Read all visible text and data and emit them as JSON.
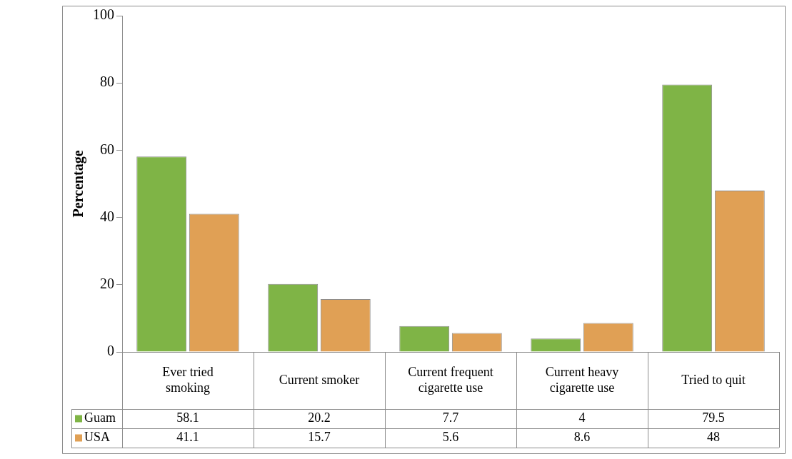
{
  "chart_data": {
    "type": "bar",
    "ylabel": "Percentage",
    "categories": [
      "Ever tried smoking",
      "Current smoker",
      "Current frequent cigarette use",
      "Current heavy cigarette use",
      "Tried to quit"
    ],
    "series": [
      {
        "name": "Guam",
        "color": "#7fb446",
        "values": [
          58.1,
          20.2,
          7.7,
          4,
          79.5
        ]
      },
      {
        "name": "USA",
        "color": "#e0a055",
        "values": [
          41.1,
          15.7,
          5.6,
          8.6,
          48
        ]
      }
    ],
    "ylim": [
      0,
      100
    ],
    "yticks": [
      0,
      20,
      40,
      60,
      80,
      100
    ],
    "grid": false,
    "legend": "bottom",
    "data_labels": true
  }
}
